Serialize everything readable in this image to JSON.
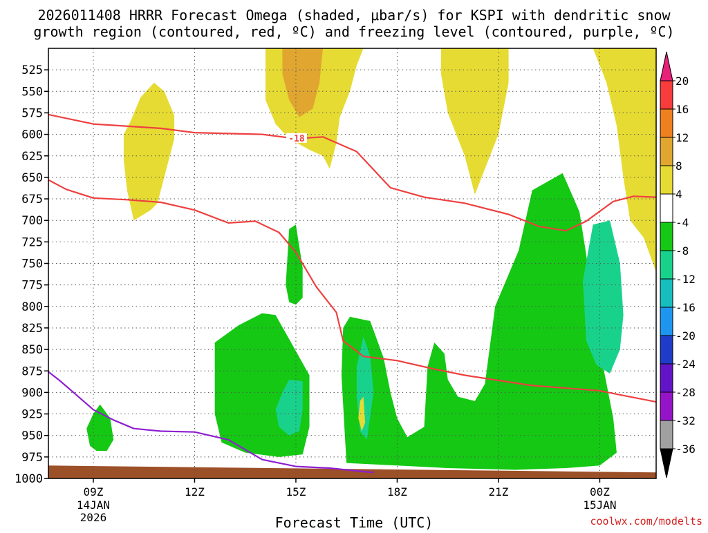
{
  "chart_data": {
    "type": "contour",
    "title_line1": "2026011408 HRRR Forecast Omega (shaded, μbar/s) for KSPI with dendritic snow",
    "title_line2": "growth region (contoured, red, ºC) and freezing level (contoured, purple, ºC)",
    "xlabel": "Forecast Time (UTC)",
    "watermark": "coolwx.com/modelts",
    "xlim": [
      7.67,
      25.67
    ],
    "ylim": [
      1000,
      500
    ],
    "x_ticks": [
      {
        "x": 9,
        "label": "09Z",
        "date": "14JAN",
        "year": "2026"
      },
      {
        "x": 12,
        "label": "12Z"
      },
      {
        "x": 15,
        "label": "15Z"
      },
      {
        "x": 18,
        "label": "18Z"
      },
      {
        "x": 21,
        "label": "21Z"
      },
      {
        "x": 24,
        "label": "00Z",
        "date": "15JAN"
      }
    ],
    "y_ticks": [
      525,
      550,
      575,
      600,
      625,
      650,
      675,
      700,
      725,
      750,
      775,
      800,
      825,
      850,
      875,
      900,
      925,
      950,
      975,
      1000
    ],
    "grid": true,
    "colorbar": {
      "labels": [
        "20",
        "16",
        "12",
        "8",
        "4",
        "-4",
        "-8",
        "-12",
        "-16",
        "-20",
        "-24",
        "-28",
        "-32",
        "-36"
      ],
      "colors": [
        "#e8e8e8",
        "#f83c3c",
        "#ef8020",
        "#e0a630",
        "#e6db32",
        "#ffffff",
        "#14c814",
        "#18d28c",
        "#16bebe",
        "#1e96f0",
        "#1e3cc8",
        "#6414c8",
        "#9614c8",
        "#a0a0a0"
      ],
      "top_triangle_color": "#e8207a",
      "bottom_triangle_color": "#000000"
    },
    "shaded_regions": [
      {
        "level": "4..8",
        "color": "#e6db32",
        "points": [
          [
            9.9,
            600
          ],
          [
            10.1,
            585
          ],
          [
            10.4,
            557
          ],
          [
            10.8,
            540
          ],
          [
            11.1,
            550
          ],
          [
            11.4,
            578
          ],
          [
            11.4,
            605
          ],
          [
            11.1,
            650
          ],
          [
            10.9,
            680
          ],
          [
            10.7,
            688
          ],
          [
            10.2,
            700
          ],
          [
            10.0,
            665
          ],
          [
            9.9,
            630
          ]
        ]
      },
      {
        "level": "4..8",
        "color": "#e6db32",
        "points": [
          [
            14.1,
            500
          ],
          [
            17.0,
            500
          ],
          [
            16.8,
            520
          ],
          [
            16.6,
            550
          ],
          [
            16.3,
            580
          ],
          [
            16.2,
            610
          ],
          [
            16.0,
            640
          ],
          [
            15.8,
            625
          ],
          [
            15.4,
            618
          ],
          [
            14.8,
            605
          ],
          [
            14.4,
            588
          ],
          [
            14.1,
            560
          ]
        ]
      },
      {
        "level": "4..8",
        "color": "#e6db32",
        "points": [
          [
            19.3,
            500
          ],
          [
            21.3,
            500
          ],
          [
            21.3,
            540
          ],
          [
            21.0,
            600
          ],
          [
            20.6,
            640
          ],
          [
            20.3,
            670
          ],
          [
            20.0,
            625
          ],
          [
            19.5,
            575
          ],
          [
            19.3,
            530
          ]
        ]
      },
      {
        "level": "4..8",
        "color": "#e6db32",
        "points": [
          [
            23.8,
            500
          ],
          [
            25.67,
            500
          ],
          [
            25.67,
            760
          ],
          [
            25.3,
            720
          ],
          [
            24.9,
            700
          ],
          [
            24.7,
            650
          ],
          [
            24.5,
            590
          ],
          [
            24.2,
            540
          ]
        ]
      },
      {
        "level": "8..12",
        "color": "#e0a630",
        "points": [
          [
            14.6,
            500
          ],
          [
            15.8,
            500
          ],
          [
            15.7,
            540
          ],
          [
            15.5,
            570
          ],
          [
            15.1,
            580
          ],
          [
            14.8,
            560
          ],
          [
            14.6,
            530
          ]
        ]
      },
      {
        "level": "-4..-8",
        "color": "#14c814",
        "points": [
          [
            9.2,
            914
          ],
          [
            9.5,
            930
          ],
          [
            9.6,
            955
          ],
          [
            9.4,
            968
          ],
          [
            9.1,
            968
          ],
          [
            8.9,
            962
          ],
          [
            8.8,
            942
          ],
          [
            9.0,
            925
          ]
        ]
      },
      {
        "level": "-4..-8",
        "color": "#14c814",
        "points": [
          [
            14.8,
            710
          ],
          [
            15.0,
            705
          ],
          [
            15.2,
            755
          ],
          [
            15.2,
            790
          ],
          [
            15.0,
            798
          ],
          [
            14.8,
            795
          ],
          [
            14.7,
            775
          ]
        ]
      },
      {
        "level": "-4..-8",
        "color": "#14c814",
        "points": [
          [
            12.6,
            842
          ],
          [
            13.3,
            822
          ],
          [
            14.0,
            808
          ],
          [
            14.4,
            810
          ],
          [
            14.9,
            845
          ],
          [
            15.4,
            880
          ],
          [
            15.4,
            940
          ],
          [
            15.2,
            972
          ],
          [
            14.5,
            975
          ],
          [
            13.5,
            970
          ],
          [
            12.8,
            958
          ],
          [
            12.6,
            925
          ],
          [
            12.6,
            880
          ]
        ]
      },
      {
        "level": "-4..-8",
        "color": "#14c814",
        "points": [
          [
            16.4,
            825
          ],
          [
            16.6,
            812
          ],
          [
            17.2,
            817
          ],
          [
            17.6,
            860
          ],
          [
            17.8,
            900
          ],
          [
            18.0,
            930
          ],
          [
            18.3,
            952
          ],
          [
            18.8,
            940
          ],
          [
            18.9,
            870
          ],
          [
            19.1,
            842
          ],
          [
            19.4,
            855
          ],
          [
            19.5,
            885
          ],
          [
            19.8,
            905
          ],
          [
            20.3,
            910
          ],
          [
            20.6,
            890
          ],
          [
            20.9,
            800
          ],
          [
            21.6,
            735
          ],
          [
            22.0,
            665
          ],
          [
            22.9,
            645
          ],
          [
            23.4,
            690
          ],
          [
            23.6,
            740
          ],
          [
            23.9,
            830
          ],
          [
            24.4,
            930
          ],
          [
            24.5,
            970
          ],
          [
            24.0,
            985
          ],
          [
            23.0,
            988
          ],
          [
            21.5,
            990
          ],
          [
            19.5,
            988
          ],
          [
            18.0,
            985
          ],
          [
            16.5,
            982
          ],
          [
            16.45,
            950
          ],
          [
            16.35,
            880
          ]
        ]
      },
      {
        "level": "-8..-12",
        "color": "#18d28c",
        "points": [
          [
            23.8,
            705
          ],
          [
            24.3,
            700
          ],
          [
            24.6,
            750
          ],
          [
            24.7,
            810
          ],
          [
            24.6,
            850
          ],
          [
            24.3,
            878
          ],
          [
            23.9,
            868
          ],
          [
            23.6,
            840
          ],
          [
            23.5,
            770
          ]
        ]
      },
      {
        "level": "-8..-12",
        "color": "#18d28c",
        "points": [
          [
            14.6,
            900
          ],
          [
            14.8,
            885
          ],
          [
            15.2,
            887
          ],
          [
            15.2,
            920
          ],
          [
            15.1,
            945
          ],
          [
            14.8,
            950
          ],
          [
            14.5,
            940
          ],
          [
            14.4,
            920
          ]
        ]
      },
      {
        "level": "-8..-12",
        "color": "#18d28c",
        "points": [
          [
            16.8,
            870
          ],
          [
            17.0,
            835
          ],
          [
            17.2,
            858
          ],
          [
            17.3,
            900
          ],
          [
            17.1,
            955
          ],
          [
            16.9,
            945
          ],
          [
            16.8,
            905
          ]
        ]
      },
      {
        "level": "4..8",
        "color": "#e6db32",
        "points": [
          [
            16.9,
            910
          ],
          [
            17.0,
            905
          ],
          [
            17.05,
            935
          ],
          [
            16.95,
            945
          ],
          [
            16.85,
            930
          ]
        ]
      }
    ],
    "ground": {
      "color": "#9c5028",
      "label": "terrain",
      "top_left": 985,
      "top_right": 993,
      "bottom": 1000
    },
    "contours": [
      {
        "name": "dgz-upper",
        "color": "#ee4040",
        "label": "-18",
        "label_x": 15.0,
        "label_p": 605,
        "points": [
          [
            7.67,
            577
          ],
          [
            9.0,
            588
          ],
          [
            11.0,
            593
          ],
          [
            12.0,
            598
          ],
          [
            14.0,
            600
          ],
          [
            15.0,
            605
          ],
          [
            15.8,
            603
          ],
          [
            16.8,
            620
          ],
          [
            17.8,
            662
          ],
          [
            18.8,
            673
          ],
          [
            20.0,
            680
          ],
          [
            21.3,
            693
          ],
          [
            22.2,
            707
          ],
          [
            23.0,
            712
          ],
          [
            23.6,
            701
          ],
          [
            24.4,
            678
          ],
          [
            25.0,
            672
          ],
          [
            25.67,
            673
          ]
        ]
      },
      {
        "name": "dgz-lower",
        "color": "#ee4040",
        "points": [
          [
            7.67,
            653
          ],
          [
            8.2,
            664
          ],
          [
            9.0,
            674
          ],
          [
            10.0,
            676
          ],
          [
            11.0,
            679
          ],
          [
            12.0,
            688
          ],
          [
            13.0,
            703
          ],
          [
            13.8,
            701
          ],
          [
            14.5,
            714
          ],
          [
            15.0,
            737
          ],
          [
            15.6,
            777
          ],
          [
            16.2,
            807
          ],
          [
            16.4,
            840
          ],
          [
            17.0,
            858
          ],
          [
            18.0,
            863
          ],
          [
            19.0,
            872
          ],
          [
            20.0,
            880
          ],
          [
            21.0,
            886
          ],
          [
            22.0,
            892
          ],
          [
            23.0,
            895
          ],
          [
            24.0,
            898
          ],
          [
            24.5,
            902
          ],
          [
            25.67,
            911
          ]
        ]
      },
      {
        "name": "freezing-level",
        "color": "#8e1fd2",
        "points": [
          [
            7.67,
            876
          ],
          [
            8.0,
            886
          ],
          [
            8.5,
            903
          ],
          [
            9.0,
            920
          ],
          [
            9.6,
            932
          ],
          [
            10.2,
            942
          ],
          [
            11.0,
            945
          ],
          [
            12.0,
            946
          ],
          [
            13.0,
            955
          ],
          [
            14.0,
            978
          ],
          [
            15.0,
            986
          ],
          [
            16.0,
            988
          ],
          [
            17.0,
            992
          ],
          [
            17.3,
            993
          ]
        ]
      }
    ]
  }
}
